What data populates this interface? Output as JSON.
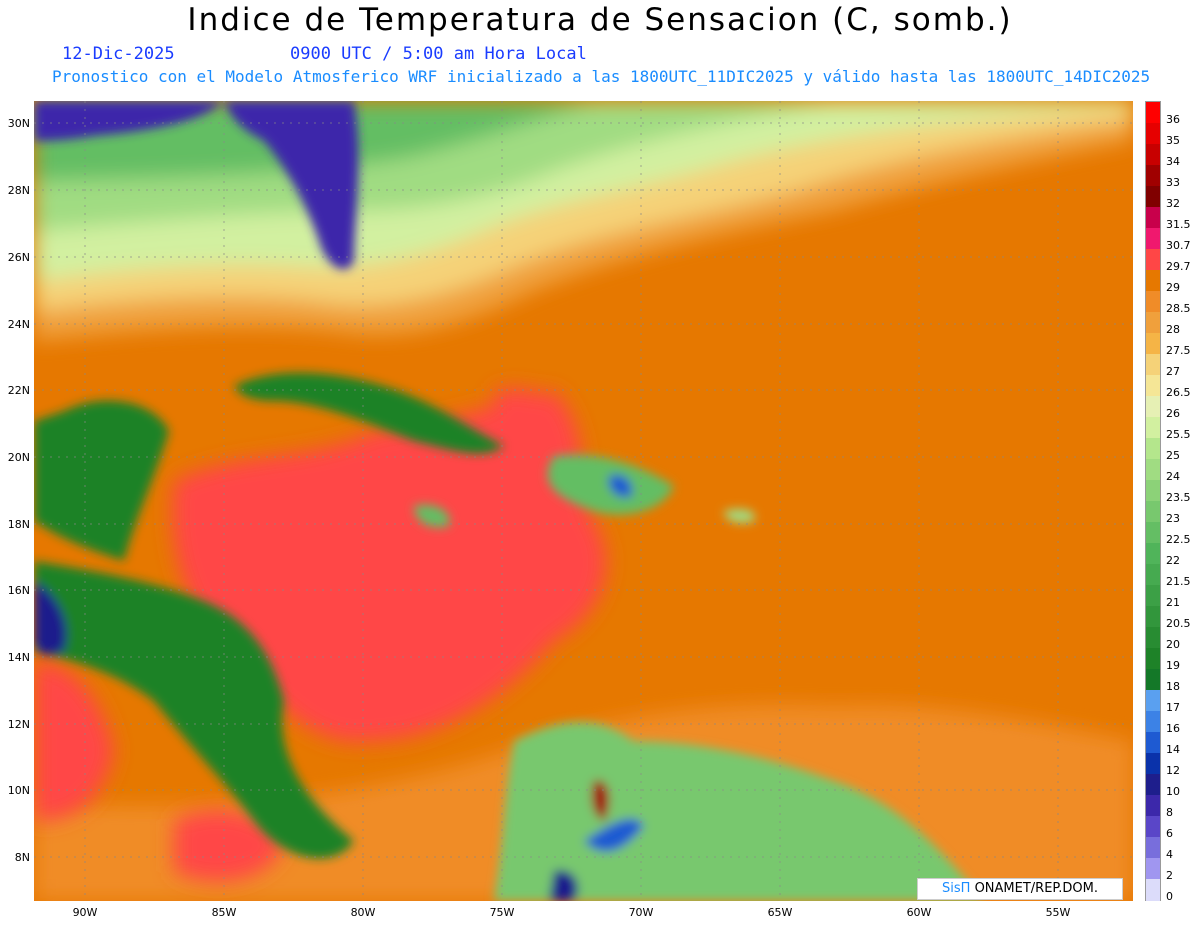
{
  "header": {
    "title": "Indice de Temperatura de Sensacion (C, somb.)",
    "date": "12-Dic-2025",
    "time": "0900 UTC / 5:00 am Hora Local",
    "forecast": "Pronostico con el Modelo Atmosferico WRF inicializado a las 1800UTC_11DIC2025 y válido hasta las  1800UTC_14DIC2025"
  },
  "axes": {
    "lat_labels": [
      "30N",
      "28N",
      "26N",
      "24N",
      "22N",
      "20N",
      "18N",
      "16N",
      "14N",
      "12N",
      "10N",
      "8N"
    ],
    "lon_labels": [
      "90W",
      "85W",
      "80W",
      "75W",
      "70W",
      "65W",
      "60W",
      "55W"
    ]
  },
  "colorbar": {
    "labels": [
      "36",
      "35",
      "34",
      "33",
      "32",
      "31.5",
      "30.7",
      "29.7",
      "29",
      "28.5",
      "28",
      "27.5",
      "27",
      "26.5",
      "26",
      "25.5",
      "25",
      "24",
      "23.5",
      "23",
      "22.5",
      "22",
      "21.5",
      "21",
      "20.5",
      "20",
      "19",
      "18",
      "17",
      "16",
      "14",
      "12",
      "10",
      "8",
      "6",
      "4",
      "2",
      "0"
    ],
    "colors": [
      "#ff0000",
      "#e60000",
      "#c80000",
      "#a00000",
      "#800000",
      "#c8004b",
      "#f0186e",
      "#ff4646",
      "#e67800",
      "#f08c28",
      "#f0a03c",
      "#f5b446",
      "#f5d278",
      "#f5e696",
      "#e6f0b4",
      "#d2f0a0",
      "#b4e68c",
      "#a0dc82",
      "#8cd278",
      "#78c86e",
      "#64be64",
      "#50b45a",
      "#46aa50",
      "#3ca046",
      "#32963c",
      "#288c32",
      "#1e8228",
      "#147828",
      "#5aa0f0",
      "#3c82e6",
      "#1e5ad2",
      "#0a32aa",
      "#1e1e8c",
      "#3c28aa",
      "#5a46c8",
      "#786edc",
      "#a096f0",
      "#dcdcfa"
    ]
  },
  "credit": {
    "sis": "SisΠ",
    "text": " ONAMET/REP.DOM."
  }
}
